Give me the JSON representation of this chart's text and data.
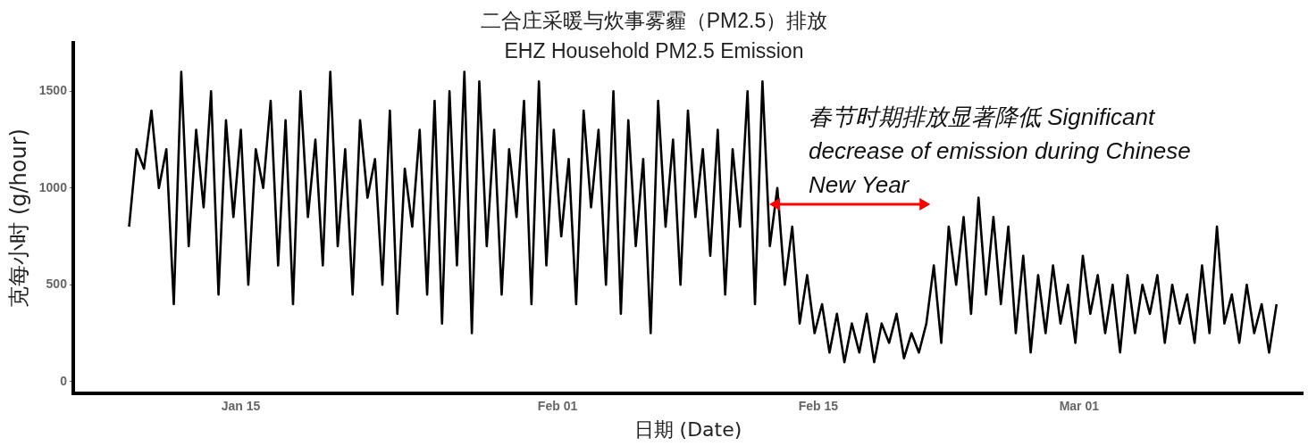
{
  "chart_data": {
    "type": "line",
    "title": "二合庄采暖与炊事雾霾（PM2.5）排放",
    "subtitle": "EHZ Household PM2.5 Emission",
    "xlabel": "日期 (Date)",
    "ylabel": "克每小时 (g/hour)",
    "annotations": [
      "春节时期排放显著降低 Significant decrease of emission during Chinese New Year"
    ],
    "xlim": [
      "--01-06",
      "--03-13"
    ],
    "xticks": [
      {
        "value": "--01-15",
        "label": "Jan 15"
      },
      {
        "value": "--02-01",
        "label": "Feb 01"
      },
      {
        "value": "--02-15",
        "label": "Feb 15"
      },
      {
        "value": "--03-01",
        "label": "Mar 01"
      }
    ],
    "ylim": [
      -60,
      1750
    ],
    "yticks": [
      0,
      500,
      1000,
      1500
    ],
    "series": [
      {
        "color": "#000000",
        "x": [
          "--01-09T00:00",
          "--01-09T09:36",
          "--01-09T19:12",
          "--01-10T04:48",
          "--01-10T14:24",
          "--01-11T00:00",
          "--01-11T09:36",
          "--01-11T19:12",
          "--01-12T04:48",
          "--01-12T14:24",
          "--01-13T00:00",
          "--01-13T09:36",
          "--01-13T19:12",
          "--01-14T04:48",
          "--01-14T14:24",
          "--01-15T00:00",
          "--01-15T09:36",
          "--01-15T19:12",
          "--01-16T04:48",
          "--01-16T14:24",
          "--01-17T00:00",
          "--01-17T09:36",
          "--01-17T19:12",
          "--01-18T04:48",
          "--01-18T14:24",
          "--01-19T00:00",
          "--01-19T09:36",
          "--01-19T19:12",
          "--01-20T04:48",
          "--01-20T14:24",
          "--01-21T00:00",
          "--01-21T09:36",
          "--01-21T19:12",
          "--01-22T04:48",
          "--01-22T14:24",
          "--01-23T00:00",
          "--01-23T09:36",
          "--01-23T19:12",
          "--01-24T04:48",
          "--01-24T14:24",
          "--01-25T00:00",
          "--01-25T09:36",
          "--01-25T19:12",
          "--01-26T04:48",
          "--01-26T14:24",
          "--01-27T00:00",
          "--01-27T09:36",
          "--01-27T19:12",
          "--01-28T04:48",
          "--01-28T14:24",
          "--01-29T00:00",
          "--01-29T09:36",
          "--01-29T19:12",
          "--01-30T04:48",
          "--01-30T14:24",
          "--01-31T00:00",
          "--01-31T09:36",
          "--01-31T19:12",
          "--02-01T04:48",
          "--02-01T14:24",
          "--02-02T00:00",
          "--02-02T09:36",
          "--02-02T19:12",
          "--02-03T04:48",
          "--02-03T14:24",
          "--02-04T00:00",
          "--02-04T09:36",
          "--02-04T19:12",
          "--02-05T04:48",
          "--02-05T14:24",
          "--02-06T00:00",
          "--02-06T09:36",
          "--02-06T19:12",
          "--02-07T04:48",
          "--02-07T14:24",
          "--02-08T00:00",
          "--02-08T09:36",
          "--02-08T19:12",
          "--02-09T04:48",
          "--02-09T14:24",
          "--02-10T00:00",
          "--02-10T09:36",
          "--02-10T19:12",
          "--02-11T04:48",
          "--02-11T14:24",
          "--02-12T00:00",
          "--02-12T09:36",
          "--02-12T19:12",
          "--02-13T04:48",
          "--02-13T14:24",
          "--02-14T00:00",
          "--02-14T09:36",
          "--02-14T19:12",
          "--02-15T04:48",
          "--02-15T14:24",
          "--02-16T00:00",
          "--02-16T09:36",
          "--02-16T19:12",
          "--02-17T04:48",
          "--02-17T14:24",
          "--02-18T00:00",
          "--02-18T09:36",
          "--02-18T19:12",
          "--02-19T04:48",
          "--02-19T14:24",
          "--02-20T00:00",
          "--02-20T09:36",
          "--02-20T19:12",
          "--02-21T04:48",
          "--02-21T14:24",
          "--02-22T00:00",
          "--02-22T09:36",
          "--02-22T19:12",
          "--02-23T04:48",
          "--02-23T14:24",
          "--02-24T00:00",
          "--02-24T09:36",
          "--02-24T19:12",
          "--02-25T04:48",
          "--02-25T14:24",
          "--02-26T00:00",
          "--02-26T09:36",
          "--02-26T19:12",
          "--02-27T04:48",
          "--02-27T14:24",
          "--02-28T00:00",
          "--02-28T09:36",
          "--02-28T19:12",
          "--03-01T04:48",
          "--03-01T14:24",
          "--03-02T00:00",
          "--03-02T09:36",
          "--03-02T19:12",
          "--03-03T04:48",
          "--03-03T14:24",
          "--03-04T00:00",
          "--03-04T09:36",
          "--03-04T19:12",
          "--03-05T04:48",
          "--03-05T14:24",
          "--03-06T00:00",
          "--03-06T09:36",
          "--03-06T19:12",
          "--03-07T04:48",
          "--03-07T14:24",
          "--03-08T00:00",
          "--03-08T09:36",
          "--03-08T19:12",
          "--03-09T04:48",
          "--03-09T14:24",
          "--03-10T00:00",
          "--03-10T09:36",
          "--03-10T19:12",
          "--03-11T04:48",
          "--03-11T14:24"
        ],
        "values": [
          800,
          1200,
          1100,
          1400,
          1000,
          1200,
          400,
          1600,
          700,
          1300,
          900,
          1500,
          450,
          1350,
          850,
          1300,
          500,
          1200,
          1000,
          1450,
          600,
          1350,
          400,
          1500,
          850,
          1250,
          600,
          1600,
          700,
          1200,
          450,
          1350,
          950,
          1150,
          500,
          1400,
          350,
          1100,
          800,
          1300,
          450,
          1450,
          300,
          1500,
          600,
          1600,
          250,
          1550,
          700,
          1300,
          450,
          1200,
          850,
          1450,
          400,
          1550,
          600,
          1300,
          750,
          1150,
          400,
          1400,
          900,
          1300,
          500,
          1500,
          350,
          1350,
          700,
          1150,
          250,
          1450,
          800,
          1250,
          500,
          1400,
          850,
          1200,
          650,
          1300,
          450,
          1200,
          800,
          1500,
          400,
          1550,
          700,
          1000,
          500,
          800,
          300,
          550,
          250,
          400,
          150,
          350,
          100,
          300,
          150,
          350,
          100,
          300,
          200,
          350,
          120,
          250,
          150,
          300,
          600,
          200,
          800,
          500,
          850,
          350,
          950,
          450,
          850,
          400,
          800,
          250,
          650,
          150,
          550,
          250,
          600,
          300,
          500,
          200,
          650,
          350,
          550,
          250,
          500,
          150,
          550,
          250,
          500,
          350,
          550,
          200,
          500,
          300,
          450,
          200,
          600,
          250,
          800,
          300,
          450,
          200,
          500,
          250,
          400,
          150,
          400
        ]
      }
    ]
  }
}
